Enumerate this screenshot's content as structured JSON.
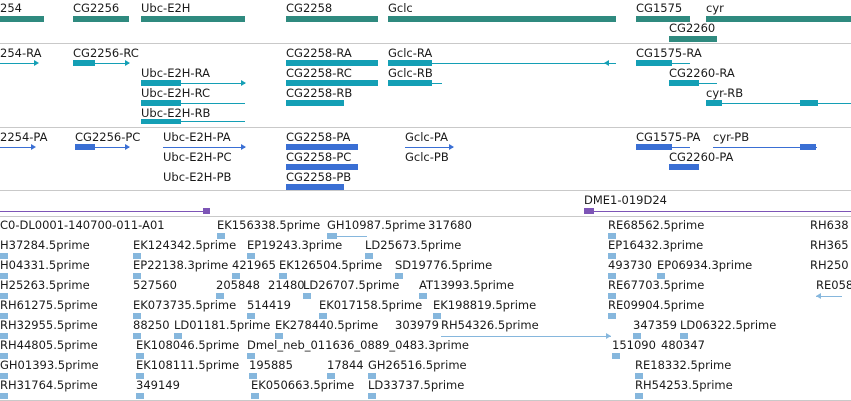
{
  "gene_track": {
    "labels": [
      "254",
      "CG2256",
      "Ubc-E2H",
      "CG2258",
      "Gclc",
      "CG1575",
      "cyr",
      "CG2260"
    ]
  },
  "transcript_rna_track": {
    "labels": [
      "254-RA",
      "CG2256-RC",
      "Ubc-E2H-RA",
      "Ubc-E2H-RC",
      "Ubc-E2H-RB",
      "CG2258-RA",
      "CG2258-RC",
      "CG2258-RB",
      "Gclc-RA",
      "Gclc-RB",
      "CG1575-RA",
      "CG2260-RA",
      "cyr-RB"
    ]
  },
  "protein_track": {
    "labels": [
      "2254-PA",
      "CG2256-PC",
      "Ubc-E2H-PA",
      "Ubc-E2H-PC",
      "Ubc-E2H-PB",
      "CG2258-PA",
      "CG2258-PC",
      "CG2258-PB",
      "Gclc-PA",
      "Gclc-PB",
      "CG1575-PA",
      "cyr-PB",
      "CG2260-PA"
    ]
  },
  "bac_track": {
    "labels": [
      "DME1-019D24"
    ]
  },
  "est_track": {
    "labels": [
      "C0-DL0001-140700-011-A01",
      "EK156338.5prime",
      "GH10987.5prime",
      "317680",
      "RE68562.5prime",
      "RH638",
      "H37284.5prime",
      "EK124342.5prime",
      "EP19243.3prime",
      "LD25673.5prime",
      "EP16432.3prime",
      "RH365",
      "H04331.5prime",
      "EP22138.3prime",
      "421965",
      "EK126504.5prime",
      "SD19776.5prime",
      "493730",
      "EP06934.3prime",
      "RH250",
      "H25263.5prime",
      "527560",
      "205848",
      "21480",
      "LD26707.5prime",
      "AT13993.5prime",
      "RE67703.5prime",
      "RE058",
      "RH61275.5prime",
      "EK073735.5prime",
      "514419",
      "EK017158.5prime",
      "EK198819.5prime",
      "RE09904.5prime",
      "RH32955.5prime",
      "88250",
      "LD01181.5prime",
      "EK278440.5prime",
      "303979",
      "RH54326.5prime",
      "347359",
      "LD06322.5prime",
      "RH44805.5prime",
      "EK108046.5prime",
      "Dmel_neb_011636_0889_0483.3prime",
      "151090",
      "480347",
      "GH01393.5prime",
      "EK108111.5prime",
      "195885",
      "17844",
      "GH26516.5prime",
      "RE18332.5prime",
      "RH31764.5prime",
      "349149",
      "EK050663.5prime",
      "LD33737.5prime",
      "RH54253.5prime"
    ]
  }
}
